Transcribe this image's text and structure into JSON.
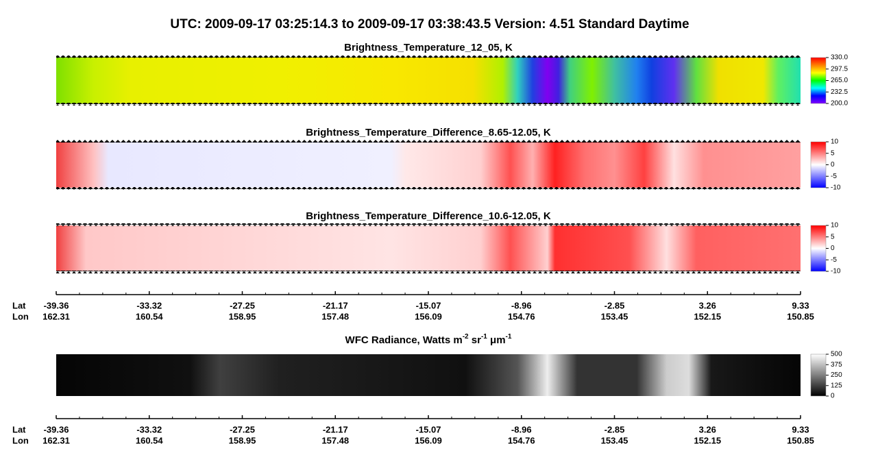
{
  "title": "UTC:  2009-09-17   03:25:14.3  to  2009-09-17   03:38:43.5    Version: 4.51  Standard Daytime",
  "chart_data": [
    {
      "type": "heatmap",
      "title": "Brightness_Temperature_12_05, K",
      "clim": [
        200,
        330
      ],
      "colors": [
        "#8000ff",
        "#0000ff",
        "#00ffff",
        "#00ff00",
        "#ffff00",
        "#ff8000",
        "#ff0000"
      ],
      "ticks": [
        {
          "value": 200,
          "label": "200.0"
        },
        232.5,
        {
          "value": 265,
          "label": "265.0"
        },
        297.5,
        {
          "value": 330,
          "label": "330.0"
        }
      ]
    },
    {
      "type": "heatmap",
      "title": "Brightness_Temperature_Difference_8.65-12.05, K",
      "clim": [
        -10,
        10
      ],
      "colors": [
        "#0000ff",
        "#ffffff",
        "#ff0000"
      ],
      "ticks": [
        -10,
        -5,
        0,
        5,
        10
      ]
    },
    {
      "type": "heatmap",
      "title": "Brightness_Temperature_Difference_10.6-12.05, K",
      "clim": [
        -10,
        10
      ],
      "colors": [
        "#0000ff",
        "#ffffff",
        "#ff0000"
      ],
      "ticks": [
        -10,
        -5,
        0,
        5,
        10
      ]
    },
    {
      "type": "axis",
      "rows": [
        {
          "label": "Lat",
          "ticks": [
            -39.36,
            -33.32,
            -27.25,
            -21.17,
            -15.07,
            -8.96,
            -2.85,
            3.26,
            9.33
          ]
        },
        {
          "label": "Lon",
          "ticks": [
            162.31,
            160.54,
            158.95,
            157.48,
            156.09,
            154.76,
            153.45,
            152.15,
            150.85
          ]
        }
      ]
    },
    {
      "type": "heatmap",
      "title_parts": [
        "WFC Radiance, Watts m",
        "-2",
        " sr",
        "-1",
        " μm",
        "-1"
      ],
      "clim": [
        0,
        500
      ],
      "colors": [
        "#000000",
        "#ffffff"
      ],
      "ticks": [
        0,
        125,
        250,
        375,
        500
      ]
    },
    {
      "type": "axis",
      "rows": [
        {
          "label": "Lat",
          "ticks": [
            -39.36,
            -33.32,
            -27.25,
            -21.17,
            -15.07,
            -8.96,
            -2.85,
            3.26,
            9.33
          ]
        },
        {
          "label": "Lon",
          "ticks": [
            162.31,
            160.54,
            158.95,
            157.48,
            156.09,
            154.76,
            153.45,
            152.15,
            150.85
          ]
        }
      ]
    }
  ]
}
